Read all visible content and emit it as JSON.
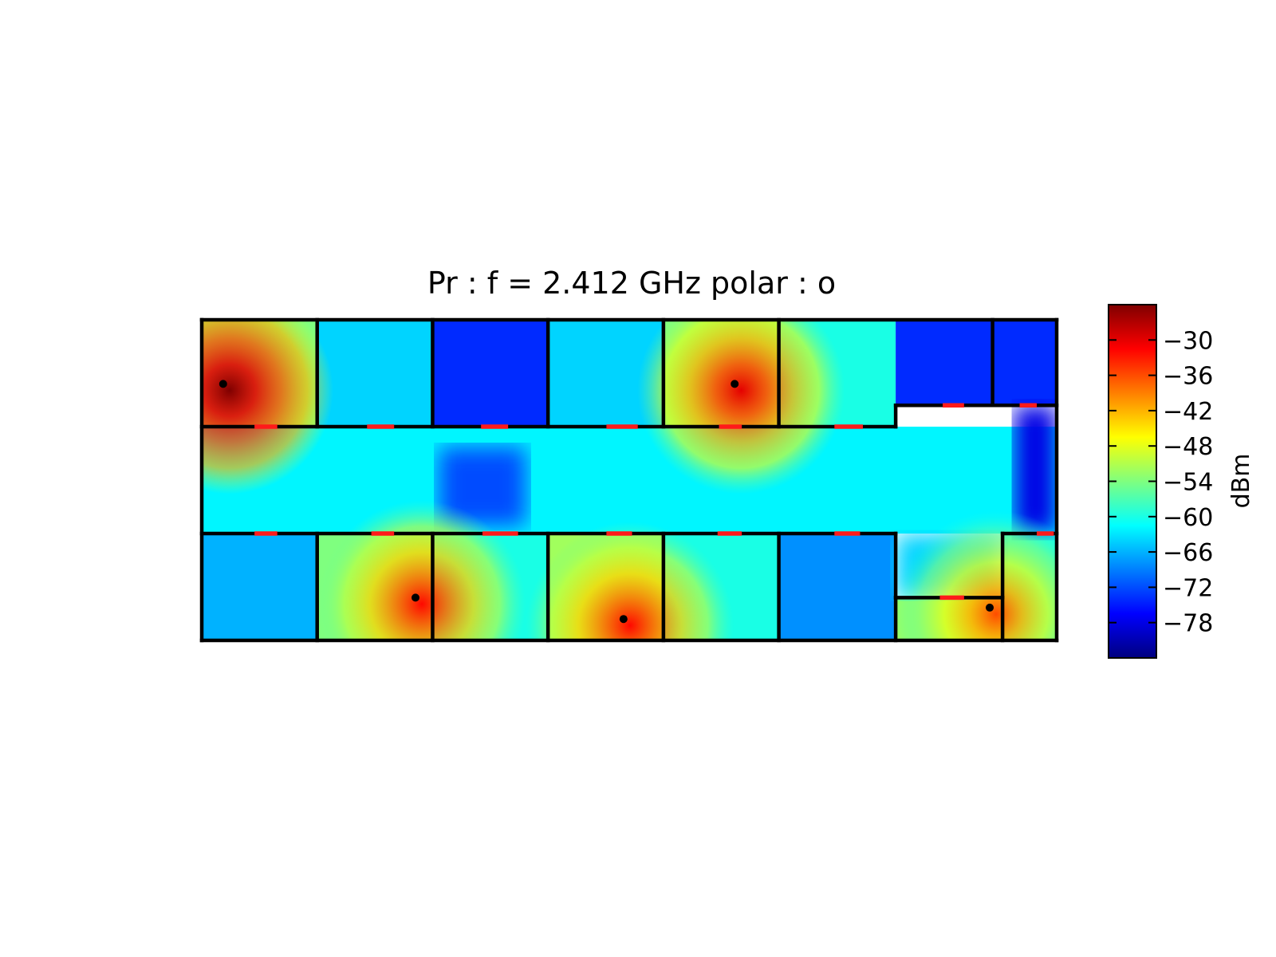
{
  "chart_data": {
    "type": "heatmap",
    "title": "Pr :  f = 2.412 GHz polar : o",
    "colorbar": {
      "label": "dBm",
      "range": [
        -84,
        -24
      ],
      "ticks": [
        -30,
        -36,
        -42,
        -48,
        -54,
        -60,
        -66,
        -72,
        -78
      ],
      "tick_labels": [
        "−30",
        "−36",
        "−42",
        "−48",
        "−54",
        "−60",
        "−66",
        "−72",
        "−78"
      ],
      "colormap": "jet",
      "colormap_stops": [
        "#00007f",
        "#0000ff",
        "#007fff",
        "#00ffff",
        "#7fff7f",
        "#ffff00",
        "#ff7f00",
        "#ff0000",
        "#7f0000"
      ]
    },
    "extent": {
      "x": [
        0,
        30
      ],
      "y": [
        0,
        11.25
      ]
    },
    "rooms": [
      {
        "name": "top-room-1",
        "x": [
          0,
          4.05
        ],
        "y": [
          7.5,
          11.25
        ],
        "level": -54
      },
      {
        "name": "top-room-2",
        "x": [
          4.05,
          8.1
        ],
        "y": [
          7.5,
          11.25
        ],
        "level": -64
      },
      {
        "name": "top-room-3",
        "x": [
          8.1,
          12.15
        ],
        "y": [
          7.5,
          11.25
        ],
        "level": -74
      },
      {
        "name": "top-room-4",
        "x": [
          12.15,
          16.2
        ],
        "y": [
          7.5,
          11.25
        ],
        "level": -64
      },
      {
        "name": "top-room-5",
        "x": [
          16.2,
          20.25
        ],
        "y": [
          7.5,
          11.25
        ],
        "level": -54
      },
      {
        "name": "top-room-6",
        "x": [
          20.25,
          24.35
        ],
        "y": [
          7.5,
          11.25
        ],
        "level": -60
      },
      {
        "name": "top-room-7",
        "x": [
          24.35,
          27.75
        ],
        "y": [
          8.25,
          11.25
        ],
        "level": -74
      },
      {
        "name": "top-room-8",
        "x": [
          27.75,
          30
        ],
        "y": [
          8.25,
          11.25
        ],
        "level": -74
      },
      {
        "name": "corridor",
        "x": [
          0,
          30
        ],
        "y": [
          3.75,
          7.5
        ],
        "level": -62
      },
      {
        "name": "bottom-room-1",
        "x": [
          0,
          4.05
        ],
        "y": [
          0,
          3.75
        ],
        "level": -66
      },
      {
        "name": "bottom-room-2",
        "x": [
          4.05,
          8.1
        ],
        "y": [
          0,
          3.75
        ],
        "level": -54
      },
      {
        "name": "bottom-room-3",
        "x": [
          8.1,
          12.15
        ],
        "y": [
          0,
          3.75
        ],
        "level": -60
      },
      {
        "name": "bottom-room-4",
        "x": [
          12.15,
          16.2
        ],
        "y": [
          0,
          3.75
        ],
        "level": -52
      },
      {
        "name": "bottom-room-5",
        "x": [
          16.2,
          20.25
        ],
        "y": [
          0,
          3.75
        ],
        "level": -60
      },
      {
        "name": "bottom-room-6",
        "x": [
          20.25,
          24.35
        ],
        "y": [
          0,
          3.75
        ],
        "level": -68
      },
      {
        "name": "bottom-room-7",
        "x": [
          24.35,
          28.1
        ],
        "y": [
          0,
          1.5
        ],
        "level": -52
      },
      {
        "name": "bottom-room-8",
        "x": [
          28.1,
          30
        ],
        "y": [
          0,
          3.75
        ],
        "level": -60
      }
    ],
    "extra_regions": [
      {
        "name": "corridor-right-dark",
        "x": [
          28.5,
          30
        ],
        "y": [
          3.75,
          8.25
        ],
        "level": -78
      },
      {
        "name": "corridor-mid-dark",
        "x": [
          8.3,
          11.4
        ],
        "y": [
          4.0,
          6.8
        ],
        "level": -72
      },
      {
        "name": "corridor-alcove",
        "x": [
          24.35,
          28.1
        ],
        "y": [
          1.5,
          3.75
        ],
        "level": -64
      }
    ],
    "transmitters": [
      {
        "x": 0.75,
        "y": 9.0,
        "peak": -24
      },
      {
        "x": 18.7,
        "y": 9.0,
        "peak": -30
      },
      {
        "x": 7.5,
        "y": 1.5,
        "peak": -32
      },
      {
        "x": 14.8,
        "y": 0.75,
        "peak": -32
      },
      {
        "x": 27.65,
        "y": 1.15,
        "peak": -36
      }
    ],
    "walls": [
      [
        [
          0,
          0
        ],
        [
          30,
          0
        ]
      ],
      [
        [
          0,
          11.25
        ],
        [
          30,
          11.25
        ]
      ],
      [
        [
          0,
          0
        ],
        [
          0,
          11.25
        ]
      ],
      [
        [
          30,
          0
        ],
        [
          30,
          11.25
        ]
      ],
      [
        [
          0,
          7.5
        ],
        [
          24.35,
          7.5
        ]
      ],
      [
        [
          24.35,
          7.5
        ],
        [
          24.35,
          8.25
        ]
      ],
      [
        [
          24.35,
          8.25
        ],
        [
          30,
          8.25
        ]
      ],
      [
        [
          0,
          3.75
        ],
        [
          24.35,
          3.75
        ]
      ],
      [
        [
          24.35,
          3.75
        ],
        [
          24.35,
          1.5
        ]
      ],
      [
        [
          24.35,
          1.5
        ],
        [
          28.1,
          1.5
        ]
      ],
      [
        [
          28.1,
          0
        ],
        [
          28.1,
          3.75
        ]
      ],
      [
        [
          28.1,
          3.75
        ],
        [
          30,
          3.75
        ]
      ],
      [
        [
          4.05,
          7.5
        ],
        [
          4.05,
          11.25
        ]
      ],
      [
        [
          8.1,
          7.5
        ],
        [
          8.1,
          11.25
        ]
      ],
      [
        [
          12.15,
          7.5
        ],
        [
          12.15,
          11.25
        ]
      ],
      [
        [
          16.2,
          7.5
        ],
        [
          16.2,
          11.25
        ]
      ],
      [
        [
          20.25,
          7.5
        ],
        [
          20.25,
          11.25
        ]
      ],
      [
        [
          27.75,
          8.25
        ],
        [
          27.75,
          11.25
        ]
      ],
      [
        [
          4.05,
          0
        ],
        [
          4.05,
          3.75
        ]
      ],
      [
        [
          8.1,
          0
        ],
        [
          8.1,
          3.75
        ]
      ],
      [
        [
          12.15,
          0
        ],
        [
          12.15,
          3.75
        ]
      ],
      [
        [
          16.2,
          0
        ],
        [
          16.2,
          3.75
        ]
      ],
      [
        [
          20.25,
          0
        ],
        [
          20.25,
          3.75
        ]
      ],
      [
        [
          24.35,
          0
        ],
        [
          24.35,
          1.5
        ]
      ]
    ],
    "doors": [
      [
        [
          1.85,
          7.5
        ],
        [
          2.65,
          7.5
        ]
      ],
      [
        [
          5.8,
          7.5
        ],
        [
          6.75,
          7.5
        ]
      ],
      [
        [
          9.8,
          7.5
        ],
        [
          10.75,
          7.5
        ]
      ],
      [
        [
          14.2,
          7.5
        ],
        [
          15.3,
          7.5
        ]
      ],
      [
        [
          18.15,
          7.5
        ],
        [
          18.95,
          7.5
        ]
      ],
      [
        [
          22.2,
          7.5
        ],
        [
          23.2,
          7.5
        ]
      ],
      [
        [
          26.0,
          8.25
        ],
        [
          26.75,
          8.25
        ]
      ],
      [
        [
          28.7,
          8.25
        ],
        [
          29.3,
          8.25
        ]
      ],
      [
        [
          1.85,
          3.75
        ],
        [
          2.65,
          3.75
        ]
      ],
      [
        [
          5.95,
          3.75
        ],
        [
          6.75,
          3.75
        ]
      ],
      [
        [
          9.85,
          3.75
        ],
        [
          11.1,
          3.75
        ]
      ],
      [
        [
          14.2,
          3.75
        ],
        [
          15.1,
          3.75
        ]
      ],
      [
        [
          18.1,
          3.75
        ],
        [
          18.95,
          3.75
        ]
      ],
      [
        [
          22.2,
          3.75
        ],
        [
          23.1,
          3.75
        ]
      ],
      [
        [
          25.9,
          1.5
        ],
        [
          26.75,
          1.5
        ]
      ],
      [
        [
          29.3,
          3.75
        ],
        [
          29.9,
          3.75
        ]
      ]
    ]
  }
}
